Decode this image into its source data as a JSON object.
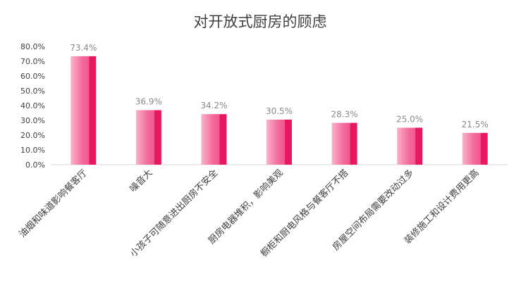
{
  "chart_data": {
    "type": "bar",
    "title": "对开放式厨房的顾虑",
    "xlabel": "",
    "ylabel": "",
    "ylim": [
      0,
      80
    ],
    "y_ticks": [
      "0.0%",
      "10.0%",
      "20.0%",
      "30.0%",
      "40.0%",
      "50.0%",
      "60.0%",
      "70.0%",
      "80.0%"
    ],
    "y_tick_values": [
      0,
      10,
      20,
      30,
      40,
      50,
      60,
      70,
      80
    ],
    "grid": false,
    "legend": "none",
    "categories": [
      "油烟和味道影响餐客厅",
      "噪音大",
      "小孩子可随意进出厨房不安全",
      "厨房电器堆积，影响美观",
      "橱柜和厨电风格与餐客厅不搭",
      "房屋空间布局需要改动过多",
      "装修施工和设计费用更高"
    ],
    "values": [
      73.4,
      36.9,
      34.2,
      30.5,
      28.3,
      25.0,
      21.5
    ],
    "data_labels": [
      "73.4%",
      "36.9%",
      "34.2%",
      "30.5%",
      "28.3%",
      "25.0%",
      "21.5%"
    ],
    "colors": {
      "bar_left": "#f8a8c4",
      "bar_mid": "#f36596",
      "bar_right": "#e8175f",
      "label": "#8a8a8a",
      "axis": "#d9d9d9",
      "text": "#404040"
    }
  }
}
